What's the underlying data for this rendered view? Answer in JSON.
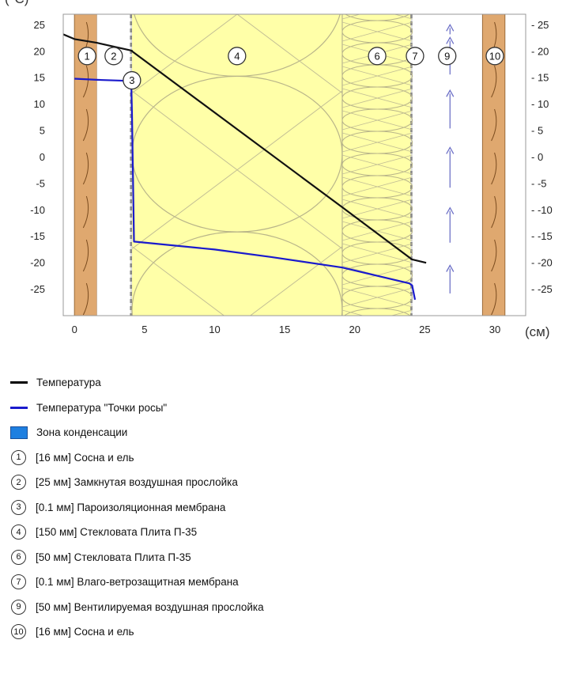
{
  "chart_data": {
    "type": "line",
    "y_unit_label": "(°C)",
    "x_unit_label": "(см)",
    "xlim": [
      -0.8,
      32.2
    ],
    "ylim": [
      -30,
      27
    ],
    "x_ticks": [
      "0",
      "5",
      "10",
      "15",
      "20",
      "25",
      "30"
    ],
    "x_tick_values": [
      0,
      5,
      10,
      15,
      20,
      25,
      30
    ],
    "y_ticks": [
      "25",
      "20",
      "15",
      "10",
      "5",
      "0",
      "-5",
      "-10",
      "-15",
      "-20",
      "-25"
    ],
    "y_tick_values": [
      25,
      20,
      15,
      10,
      5,
      0,
      -5,
      -10,
      -15,
      -20,
      -25
    ],
    "y_ticks_right": [
      "- 25",
      "- 20",
      "- 15",
      "- 10",
      "- 5",
      "- 0",
      "- -5",
      "- -10",
      "- -15",
      "- -20",
      "- -25"
    ],
    "layers": [
      {
        "id": "1",
        "from": 0,
        "to": 1.6,
        "fill": "#dfa86f",
        "kind": "wood"
      },
      {
        "id": "2",
        "from": 1.6,
        "to": 4.1,
        "fill": "#ffffff",
        "kind": "air"
      },
      {
        "id": "3",
        "from": 4.1,
        "to": 4.11,
        "fill": "#888888",
        "kind": "membrane"
      },
      {
        "id": "4",
        "from": 4.11,
        "to": 19.11,
        "fill": "#ffffa8",
        "kind": "wool"
      },
      {
        "id": "6",
        "from": 19.11,
        "to": 24.11,
        "fill": "#ffffa8",
        "kind": "wool-small"
      },
      {
        "id": "7",
        "from": 24.11,
        "to": 24.12,
        "fill": "#888888",
        "kind": "membrane"
      },
      {
        "id": "9",
        "from": 24.12,
        "to": 29.12,
        "fill": "#ffffff",
        "kind": "vent"
      },
      {
        "id": "10",
        "from": 29.12,
        "to": 30.72,
        "fill": "#dfa86f",
        "kind": "wood"
      }
    ],
    "layer_markers": [
      {
        "label": "1",
        "x": 0.9,
        "y": 19.1
      },
      {
        "label": "2",
        "x": 2.8,
        "y": 19.1
      },
      {
        "label": "3",
        "x": 4.1,
        "y": 14.5
      },
      {
        "label": "4",
        "x": 11.6,
        "y": 19.1
      },
      {
        "label": "6",
        "x": 21.6,
        "y": 19.1
      },
      {
        "label": "7",
        "x": 24.3,
        "y": 19.1
      },
      {
        "label": "9",
        "x": 26.6,
        "y": 19.1
      },
      {
        "label": "10",
        "x": 30.0,
        "y": 19.1
      }
    ],
    "series": [
      {
        "name": "Температура",
        "color": "#111111",
        "x": [
          -0.8,
          0.0,
          1.6,
          4.1,
          4.11,
          19.11,
          24.1,
          24.12,
          25.1
        ],
        "y": [
          23.2,
          22.3,
          21.6,
          20.1,
          20.0,
          -9.5,
          -19.4,
          -19.4,
          -20.0
        ]
      },
      {
        "name": "Температура \"Точки росы\"",
        "color": "#1a1acc",
        "x": [
          0.0,
          1.6,
          3.8,
          4.05,
          4.11,
          4.25,
          10.0,
          14.0,
          19.11,
          23.9,
          24.1,
          24.3
        ],
        "y": [
          14.8,
          14.6,
          14.4,
          14.4,
          8.0,
          -16.0,
          -17.5,
          -18.9,
          -20.9,
          -23.9,
          -24.3,
          -27.0
        ]
      }
    ],
    "vent_arrows": [
      {
        "x": 26.8,
        "from": -25.8,
        "to": -20.5
      },
      {
        "x": 26.8,
        "from": -16.2,
        "to": -9.6
      },
      {
        "x": 26.8,
        "from": -5.8,
        "to": 1.8
      },
      {
        "x": 26.8,
        "from": 5.4,
        "to": 12.6
      },
      {
        "x": 26.8,
        "from": 15.6,
        "to": 22.6
      },
      {
        "x": 26.8,
        "from": 23.2,
        "to": 25.0
      }
    ]
  },
  "legend": {
    "temperature": "Температура",
    "dewpoint": "Температура \"Точки росы\"",
    "condensation_zone": "Зона конденсации",
    "items": [
      {
        "num": "1",
        "text": "[16 мм] Сосна и ель"
      },
      {
        "num": "2",
        "text": "[25 мм] Замкнутая воздушная прослойка"
      },
      {
        "num": "3",
        "text": "[0.1 мм] Пароизоляционная мембрана"
      },
      {
        "num": "4",
        "text": "[150 мм] Стекловата Плита П-35"
      },
      {
        "num": "6",
        "text": "[50 мм] Стекловата Плита П-35"
      },
      {
        "num": "7",
        "text": "[0.1 мм] Влаго-ветрозащитная мембрана"
      },
      {
        "num": "9",
        "text": "[50 мм] Вентилируемая воздушная прослойка"
      },
      {
        "num": "10",
        "text": "[16 мм] Сосна и ель"
      }
    ]
  },
  "colors": {
    "temperature_line": "#111111",
    "dewpoint_line": "#1a1acc",
    "condensation_fill": "#1e7fe0",
    "wool": "#ffffa8",
    "wood": "#dfa86f"
  }
}
